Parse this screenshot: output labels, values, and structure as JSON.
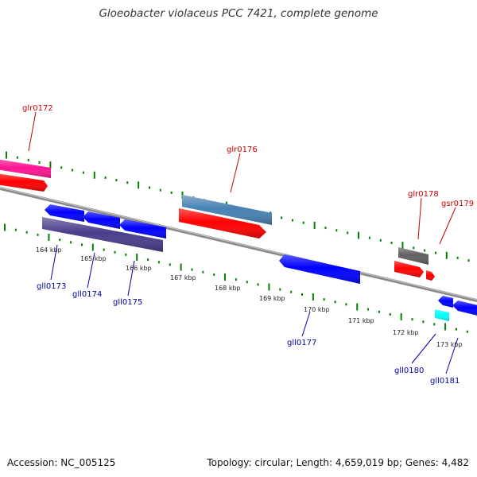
{
  "title": "Gloeobacter violaceus PCC 7421, complete genome",
  "footer": {
    "accession": "Accession: NC_005125",
    "topology": "Topology: circular; Length: 4,659,019 bp; Genes: 4,482"
  },
  "colors": {
    "plus_label": "#cc0000",
    "minus_label": "#0000aa",
    "tick": "#008000",
    "backbone": "#808080"
  },
  "scale_labels": [
    "164 kbp",
    "165 kbp",
    "166 kbp",
    "167 kbp",
    "168 kbp",
    "169 kbp",
    "170 kbp",
    "171 kbp",
    "172 kbp",
    "173 kbp"
  ],
  "plus_genes": [
    {
      "label": "glr0172",
      "color": "#ff1493",
      "row": "outer",
      "arrow": true
    },
    {
      "label": "glr0176",
      "color": "#4682b4",
      "row": "outer",
      "arrow": false
    },
    {
      "label": "glr0178",
      "color": "#606060",
      "row": "outer",
      "arrow": false
    },
    {
      "label": "gsr0179",
      "color": "#ff0000",
      "row": "inner",
      "arrow": true
    }
  ],
  "minus_genes": [
    {
      "label": "gll0173",
      "color": "#483d8b"
    },
    {
      "label": "gll0174",
      "color": "#0000ff"
    },
    {
      "label": "gll0175",
      "color": "#0000ff"
    },
    {
      "label": "gll0177",
      "color": "#0000ff"
    },
    {
      "label": "gll0180",
      "color": "#00ffff"
    },
    {
      "label": "gll0181",
      "color": "#0000ff"
    }
  ]
}
